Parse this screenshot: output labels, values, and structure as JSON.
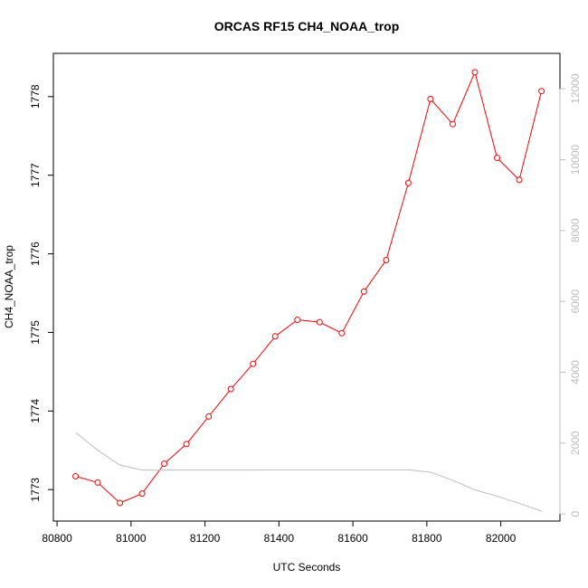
{
  "chart_data": {
    "type": "line",
    "title": "ORCAS RF15 CH4_NOAA_trop",
    "xlabel": "UTC Seconds",
    "ylabel": "CH4_NOAA_trop",
    "xlim": [
      80790,
      82160
    ],
    "ylim": [
      1772.6,
      1778.55
    ],
    "y2lim": [
      -200,
      13000
    ],
    "x_ticks": [
      80800,
      81000,
      81200,
      81400,
      81600,
      81800,
      82000
    ],
    "y_ticks": [
      1773,
      1774,
      1775,
      1776,
      1777,
      1778
    ],
    "y2_ticks": [
      0,
      2000,
      4000,
      6000,
      8000,
      10000,
      12000
    ],
    "grid": false,
    "series": [
      {
        "axis": "left",
        "color": "#ff0000",
        "markers": "open-circle",
        "x": [
          80850,
          80910,
          80970,
          81030,
          81090,
          81150,
          81210,
          81270,
          81330,
          81390,
          81450,
          81510,
          81570,
          81630,
          81690,
          81750,
          81810,
          81870,
          81930,
          81990,
          82050,
          82110
        ],
        "values": [
          1773.17,
          1773.09,
          1772.83,
          1772.95,
          1773.33,
          1773.58,
          1773.93,
          1774.28,
          1774.6,
          1774.95,
          1775.16,
          1775.13,
          1774.99,
          1775.52,
          1775.92,
          1776.9,
          1777.97,
          1777.65,
          1778.31,
          1777.22,
          1776.94,
          1778.07
        ]
      },
      {
        "axis": "right",
        "color": "#bdbdbd",
        "markers": "none",
        "x": [
          80850,
          80910,
          80970,
          81030,
          81090,
          81150,
          81210,
          81270,
          81330,
          81390,
          81450,
          81510,
          81570,
          81630,
          81690,
          81750,
          81810,
          81870,
          81930,
          81990,
          82050,
          82110
        ],
        "values": [
          2300,
          1800,
          1380,
          1240,
          1240,
          1240,
          1240,
          1240,
          1240,
          1245,
          1245,
          1245,
          1245,
          1245,
          1245,
          1245,
          1180,
          950,
          680,
          500,
          300,
          80
        ]
      }
    ]
  }
}
